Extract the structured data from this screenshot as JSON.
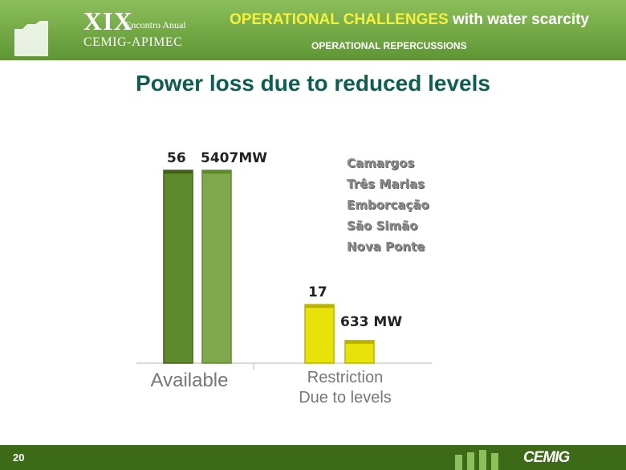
{
  "header": {
    "edition": "XIX",
    "event": "Encontro Anual",
    "org": "CEMIG-APIMEC",
    "title_accent": "OPERATIONAL CHALLENGES",
    "title_rest": " with water scarcity",
    "subtitle": "OPERATIONAL REPERCUSSIONS"
  },
  "slide_title": "Power loss due to reduced levels",
  "plants": [
    "Camargos",
    "Três Marias",
    "Emborcação",
    "São Simão",
    "Nova Ponte"
  ],
  "colors": {
    "available": "#5e8a2c",
    "available_light": "#7ea84a",
    "restriction": "#e9e20a",
    "header_green": "#72a844",
    "title_teal": "#0e5e50"
  },
  "chart_data": {
    "type": "bar",
    "categories": [
      "Available",
      "Restriction Due to levels"
    ],
    "series": [
      {
        "name": "",
        "values": [
          56,
          17
        ]
      },
      {
        "name": "",
        "values": [
          5407,
          633
        ]
      }
    ],
    "data_labels": [
      [
        "56",
        "17"
      ],
      [
        "5407MW",
        "633 MW"
      ]
    ],
    "category_lines": [
      [
        "Available"
      ],
      [
        "Restriction",
        "Due to levels"
      ]
    ]
  },
  "footer": {
    "page": "20",
    "brand": "CEMIG"
  }
}
